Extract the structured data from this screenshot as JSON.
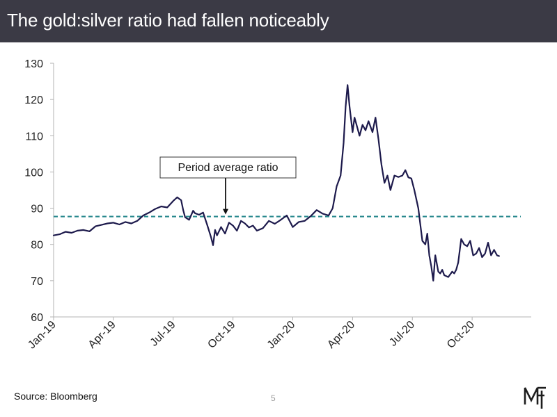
{
  "header": {
    "title": "The gold:silver ratio had fallen noticeably"
  },
  "footer": {
    "source": "Source: Bloomberg",
    "page_number": "5"
  },
  "logo": {
    "letters": "M F",
    "icon": "mf-monogram-icon"
  },
  "colors": {
    "series": "#1d1a4c",
    "average_line": "#2a8a8f",
    "header_bg": "#3b3a45",
    "axis": "#b3b3b3",
    "text": "#222222"
  },
  "chart_data": {
    "type": "line",
    "title": "The gold:silver ratio had fallen noticeably",
    "xlabel": "",
    "ylabel": "",
    "ylim": [
      60,
      130
    ],
    "yticks": [
      60,
      70,
      80,
      90,
      100,
      110,
      120,
      130
    ],
    "xlim": [
      0,
      24
    ],
    "xticks": [
      {
        "value": 0,
        "label": "Jan-19"
      },
      {
        "value": 3,
        "label": "Apr-19"
      },
      {
        "value": 6,
        "label": "Jul-19"
      },
      {
        "value": 9,
        "label": "Oct-19"
      },
      {
        "value": 12,
        "label": "Jan-20"
      },
      {
        "value": 15,
        "label": "Apr-20"
      },
      {
        "value": 18,
        "label": "Jul-20"
      },
      {
        "value": 21,
        "label": "Oct-20"
      }
    ],
    "x_unit": "months since Jan-2019",
    "grid": false,
    "average_ratio": 87.7,
    "annotation": "Period average ratio",
    "series": [
      {
        "name": "Gold:silver ratio",
        "x": [
          0,
          0.3,
          0.6,
          0.9,
          1.2,
          1.5,
          1.8,
          2.1,
          2.4,
          2.7,
          3.0,
          3.3,
          3.6,
          3.9,
          4.2,
          4.5,
          4.8,
          5.1,
          5.4,
          5.7,
          6.0,
          6.2,
          6.4,
          6.5,
          6.6,
          6.8,
          7.0,
          7.1,
          7.3,
          7.5,
          7.7,
          7.9,
          8.0,
          8.1,
          8.2,
          8.4,
          8.6,
          8.8,
          9.0,
          9.2,
          9.4,
          9.6,
          9.8,
          10.0,
          10.2,
          10.5,
          10.8,
          11.1,
          11.4,
          11.7,
          12.0,
          12.3,
          12.6,
          12.9,
          13.2,
          13.5,
          13.8,
          14.0,
          14.2,
          14.4,
          14.55,
          14.65,
          14.75,
          14.85,
          15.0,
          15.1,
          15.2,
          15.35,
          15.5,
          15.65,
          15.8,
          16.0,
          16.15,
          16.3,
          16.45,
          16.6,
          16.75,
          16.9,
          17.1,
          17.3,
          17.5,
          17.65,
          17.8,
          17.95,
          18.1,
          18.3,
          18.5,
          18.65,
          18.75,
          18.85,
          18.95,
          19.05,
          19.15,
          19.3,
          19.4,
          19.5,
          19.6,
          19.8,
          20.0,
          20.1,
          20.2,
          20.3,
          20.45,
          20.6,
          20.75,
          20.9,
          21.05,
          21.2,
          21.35,
          21.5,
          21.65,
          21.8,
          21.95,
          22.1,
          22.25,
          22.35
        ],
        "y": [
          82.5,
          82.8,
          83.5,
          83.2,
          83.8,
          84.0,
          83.6,
          85.0,
          85.4,
          85.8,
          86.0,
          85.5,
          86.2,
          85.8,
          86.5,
          88.0,
          88.8,
          89.8,
          90.5,
          90.2,
          92.0,
          93.0,
          92.2,
          89.5,
          87.5,
          86.8,
          89.3,
          88.6,
          88.2,
          88.8,
          85.5,
          82.0,
          79.8,
          84.0,
          82.5,
          84.8,
          83.0,
          86.0,
          85.2,
          83.8,
          86.5,
          85.8,
          84.7,
          85.2,
          83.8,
          84.5,
          86.5,
          85.7,
          86.8,
          88.0,
          84.8,
          86.2,
          86.5,
          87.8,
          89.5,
          88.5,
          88.0,
          90.0,
          96.0,
          99.0,
          108.0,
          118.0,
          124.0,
          118.0,
          111.0,
          115.0,
          113.0,
          110.0,
          113.0,
          111.5,
          114.0,
          111.0,
          115.0,
          109.0,
          102.0,
          97.0,
          99.0,
          95.0,
          99.0,
          98.6,
          99.0,
          100.5,
          98.5,
          98.2,
          95.0,
          90.0,
          81.0,
          80.0,
          83.0,
          77.0,
          74.0,
          70.0,
          77.0,
          72.5,
          72.0,
          73.0,
          71.5,
          71.0,
          72.5,
          72.0,
          73.0,
          75.0,
          81.5,
          80.0,
          79.5,
          81.0,
          77.0,
          77.5,
          79.0,
          76.5,
          77.5,
          80.5,
          77.0,
          78.5,
          77.0,
          76.8
        ]
      }
    ]
  }
}
